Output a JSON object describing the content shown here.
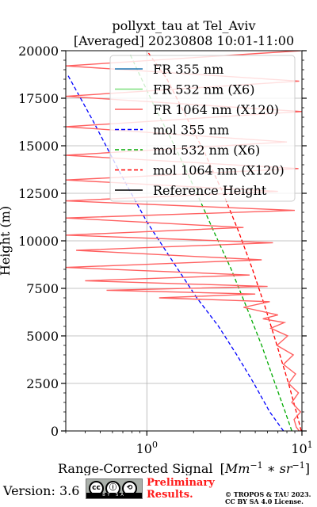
{
  "chart_data": {
    "type": "line",
    "title": "pollyxt_tau at Tel_Aviv",
    "subtitle": "[Averaged] 20230808 10:01-11:00",
    "xlabel": "Range-Corrected Signal",
    "xlabel_unit_base": "Mm",
    "xlabel_unit_exp1": "−1",
    "xlabel_unit_mid": " ∗ sr",
    "xlabel_unit_exp2": "−1",
    "ylabel": "Height (m)",
    "x_scale": "log",
    "xlim": [
      0.3,
      10
    ],
    "ylim": [
      0,
      20000
    ],
    "x_ticks": [
      {
        "value": 1,
        "base": "10",
        "exp": "0"
      },
      {
        "value": 10,
        "base": "10",
        "exp": "1"
      }
    ],
    "y_ticks": [
      0,
      2500,
      5000,
      7500,
      10000,
      12500,
      15000,
      17500,
      20000
    ],
    "grid": true,
    "legend_position": "top-right",
    "legend": [
      {
        "label": "FR 355 nm",
        "color": "#1f77b4",
        "style": "solid"
      },
      {
        "label": "FR 532 nm (X6)",
        "color": "#7fe07f",
        "style": "solid"
      },
      {
        "label": "FR 1064 nm (X120)",
        "color": "#ff6060",
        "style": "solid"
      },
      {
        "label": "mol 355 nm",
        "color": "#0000ff",
        "style": "dashed"
      },
      {
        "label": "mol 532 nm (X6)",
        "color": "#00aa00",
        "style": "dashed"
      },
      {
        "label": "mol 1064 nm (X120)",
        "color": "#ff0000",
        "style": "dashed"
      },
      {
        "label": "Reference Height",
        "color": "#000000",
        "style": "solid"
      }
    ],
    "series": [
      {
        "name": "mol 355 nm",
        "color": "#0000ff",
        "dash": true,
        "x": [
          7.6,
          6.2,
          4.9,
          3.8,
          2.9,
          2.1,
          1.5,
          1.0,
          0.68,
          0.45,
          0.31
        ],
        "y": [
          0,
          1000,
          2500,
          4000,
          5500,
          7000,
          8800,
          11000,
          13500,
          16300,
          18700
        ]
      },
      {
        "name": "mol 532 nm (X6)",
        "color": "#00aa00",
        "dash": true,
        "x": [
          8.6,
          7.8,
          6.7,
          5.5,
          4.4,
          3.5,
          2.7,
          2.1,
          1.55,
          1.1,
          0.78
        ],
        "y": [
          0,
          1000,
          2500,
          4500,
          6500,
          8500,
          10500,
          12500,
          14800,
          17200,
          19800
        ]
      },
      {
        "name": "mol 1064 nm (X120)",
        "color": "#ff0000",
        "dash": true,
        "x": [
          9.9,
          9.2,
          8.2,
          6.9,
          5.8,
          4.8,
          3.9,
          3.1,
          2.4,
          1.8,
          1.35,
          1.0
        ],
        "y": [
          0,
          1000,
          2500,
          4500,
          6500,
          8500,
          10500,
          12500,
          14500,
          16500,
          18500,
          20000
        ]
      },
      {
        "name": "FR 1064 nm (X120)",
        "color": "#ff6060",
        "dash": false,
        "x": [
          9.6,
          9.2,
          8.9,
          9.8,
          8.6,
          9.5,
          8.2,
          9.1,
          7.6,
          8.8,
          6.9,
          8.1,
          6.3,
          7.7,
          5.6,
          7.0,
          4.2,
          6.2,
          1.2,
          5.0,
          0.55,
          6.0,
          0.4,
          4.6,
          0.3,
          5.5,
          0.35,
          6.5,
          0.3,
          4.2,
          0.3,
          9.0,
          0.3,
          7.0,
          0.3,
          9.5,
          0.3,
          8.0,
          0.3,
          10,
          0.3,
          9.6,
          0.3,
          9.8
        ],
        "y": [
          0,
          200,
          600,
          1000,
          1500,
          2000,
          2500,
          3000,
          3500,
          4000,
          4500,
          5000,
          5400,
          5700,
          5900,
          6100,
          6500,
          6800,
          7000,
          7200,
          7400,
          7600,
          7900,
          8200,
          8600,
          9000,
          9500,
          9900,
          10300,
          10700,
          11200,
          11600,
          12100,
          12600,
          13200,
          13800,
          14500,
          15200,
          16000,
          16800,
          17600,
          18400,
          19200,
          20000
        ]
      }
    ]
  },
  "footer": {
    "version": "Version: 3.6",
    "cc_top": "cc  ⓘ  ⊜",
    "cc_bottom": "BY SA",
    "preliminary_line1": "Preliminary",
    "preliminary_line2": "Results.",
    "copyright_line1": "© TROPOS & TAU 2023.",
    "copyright_line2": "CC BY SA 4.0 License."
  }
}
